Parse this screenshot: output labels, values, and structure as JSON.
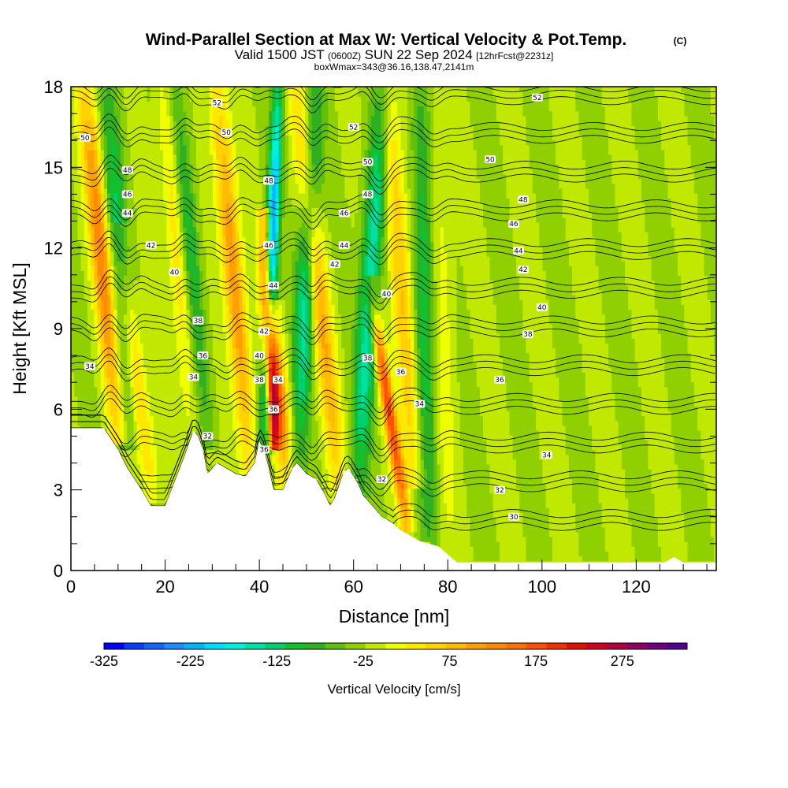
{
  "title": {
    "main": "Wind-Parallel Section at Max W: Vertical Velocity & Pot.Temp.",
    "copyright": "(C)",
    "valid_prefix": "Valid 1500 JST",
    "valid_utc": "(0600Z)",
    "valid_date": "SUN 22 Sep 2024",
    "forecast": "[12hrFcst@2231z]",
    "box_info": "boxWmax=343@36.16,138.47,2141m"
  },
  "colors": {
    "terrain": "#ffffff",
    "contour": "#000000",
    "palette": [
      "#0000ff",
      "#0a3cff",
      "#1464ff",
      "#1e8cff",
      "#00b4ff",
      "#00dcff",
      "#00f0e0",
      "#00e0a0",
      "#00d070",
      "#10c030",
      "#30b020",
      "#60c010",
      "#90d000",
      "#c0e800",
      "#f0ff00",
      "#ffe800",
      "#ffd200",
      "#ffbc00",
      "#ffa000",
      "#ff8a00",
      "#ff7000",
      "#ff5000",
      "#f03000",
      "#e01000",
      "#d00020",
      "#b00040",
      "#900060",
      "#700080",
      "#500090"
    ]
  },
  "chart_data": {
    "type": "heatmap",
    "title": "Wind-Parallel Section at Max W: Vertical Velocity & Pot.Temp.",
    "xlabel": "Distance [nm]",
    "ylabel": "Height [Kft MSL]",
    "xlim": [
      0,
      137
    ],
    "ylim": [
      0,
      18
    ],
    "x_ticks": [
      0,
      20,
      40,
      60,
      80,
      100,
      120
    ],
    "y_ticks": [
      0,
      3,
      6,
      9,
      12,
      15,
      18
    ],
    "colorbar": {
      "label": "Vertical Velocity [cm/s]",
      "min": -325,
      "max": 325,
      "step": 25,
      "tick_values": [
        -325,
        -225,
        -125,
        -25,
        75,
        175,
        275
      ]
    },
    "terrain_profile": {
      "x": [
        0,
        7,
        10,
        12,
        15,
        17,
        20,
        22,
        24,
        26,
        27,
        28,
        29,
        31,
        33,
        35,
        37,
        39,
        40,
        41,
        42,
        43,
        45,
        46,
        47,
        48,
        50,
        52,
        54,
        55,
        56,
        57,
        58,
        59,
        61,
        62,
        64,
        66,
        68,
        70,
        72,
        74,
        76,
        78,
        80,
        82,
        90,
        100,
        110,
        120,
        126,
        128,
        130,
        132,
        137
      ],
      "height_kft": [
        5.3,
        5.3,
        4.5,
        3.8,
        3.0,
        2.4,
        2.4,
        3.3,
        4.2,
        5.2,
        5.0,
        4.5,
        3.6,
        4.0,
        3.8,
        3.6,
        3.5,
        4.0,
        4.8,
        4.5,
        3.8,
        3.0,
        3.0,
        3.4,
        3.8,
        4.0,
        3.6,
        3.4,
        2.8,
        2.4,
        2.7,
        3.2,
        3.7,
        3.8,
        3.2,
        2.8,
        2.4,
        2.0,
        1.8,
        1.5,
        1.3,
        1.1,
        1.0,
        0.9,
        0.6,
        0.3,
        0.3,
        0.3,
        0.3,
        0.3,
        0.3,
        0.5,
        0.3,
        0.3,
        0.3
      ]
    },
    "updraft_bands": [
      {
        "x_bottom": 10,
        "x_top": 3,
        "h_bottom": 5.2,
        "h_top": 18,
        "w": 170
      },
      {
        "x_bottom": 17,
        "x_top": 10,
        "h_bottom": 3.0,
        "h_top": 12,
        "w": 100
      },
      {
        "x_bottom": 27,
        "x_top": 20,
        "h_bottom": 4.5,
        "h_top": 18,
        "w": 120
      },
      {
        "x_bottom": 38,
        "x_top": 31,
        "h_bottom": 4.0,
        "h_top": 18,
        "w": 150
      },
      {
        "x_bottom": 43,
        "x_top": 41,
        "h_bottom": 5.0,
        "h_top": 12.5,
        "w": 300
      },
      {
        "x_bottom": 46,
        "x_top": 43,
        "h_bottom": 3.5,
        "h_top": 9,
        "w": 150
      },
      {
        "x_bottom": 57,
        "x_top": 48,
        "h_bottom": 3.0,
        "h_top": 18,
        "w": 130
      },
      {
        "x_bottom": 71,
        "x_top": 64,
        "h_bottom": 2.0,
        "h_top": 10,
        "w": 220
      },
      {
        "x_bottom": 73,
        "x_top": 67,
        "h_bottom": 3.5,
        "h_top": 18,
        "w": 110
      },
      {
        "x_bottom": 80,
        "x_top": 78,
        "h_bottom": 0.8,
        "h_top": 18,
        "w": 40
      }
    ],
    "downdraft_bands": [
      {
        "x_bottom": 12,
        "x_top": 8,
        "h_bottom": 5.0,
        "h_top": 18,
        "w": -110
      },
      {
        "x_bottom": 28,
        "x_top": 22,
        "h_bottom": 5.0,
        "h_top": 18,
        "w": -130
      },
      {
        "x_bottom": 41,
        "x_top": 44,
        "h_bottom": 4.8,
        "h_top": 18,
        "w": -250
      },
      {
        "x_bottom": 48,
        "x_top": 52,
        "h_bottom": 4.0,
        "h_top": 18,
        "w": -140
      },
      {
        "x_bottom": 61,
        "x_top": 66,
        "h_bottom": 3.2,
        "h_top": 18,
        "w": -150
      },
      {
        "x_bottom": 76,
        "x_top": 74,
        "h_bottom": 1.0,
        "h_top": 18,
        "w": -100
      }
    ],
    "contour_levels_k": [
      30,
      32,
      34,
      36,
      38,
      40,
      42,
      44,
      46,
      48,
      50,
      52
    ],
    "contour_labels": [
      {
        "x": 3,
        "h": 16.1,
        "text": "50"
      },
      {
        "x": 12,
        "h": 14.9,
        "text": "48"
      },
      {
        "x": 12,
        "h": 14.0,
        "text": "46"
      },
      {
        "x": 12,
        "h": 13.3,
        "text": "44"
      },
      {
        "x": 17,
        "h": 12.1,
        "text": "42"
      },
      {
        "x": 22,
        "h": 11.1,
        "text": "40"
      },
      {
        "x": 4,
        "h": 7.6,
        "text": "34"
      },
      {
        "x": 31,
        "h": 17.4,
        "text": "52"
      },
      {
        "x": 33,
        "h": 16.3,
        "text": "50"
      },
      {
        "x": 27,
        "h": 9.3,
        "text": "38"
      },
      {
        "x": 28,
        "h": 8.0,
        "text": "36"
      },
      {
        "x": 26,
        "h": 7.2,
        "text": "34"
      },
      {
        "x": 29,
        "h": 5.0,
        "text": "32"
      },
      {
        "x": 42,
        "h": 14.5,
        "text": "48"
      },
      {
        "x": 42,
        "h": 12.1,
        "text": "46"
      },
      {
        "x": 43,
        "h": 10.6,
        "text": "44"
      },
      {
        "x": 41,
        "h": 8.9,
        "text": "42"
      },
      {
        "x": 40,
        "h": 8.0,
        "text": "40"
      },
      {
        "x": 40,
        "h": 7.1,
        "text": "38"
      },
      {
        "x": 44,
        "h": 7.1,
        "text": "34"
      },
      {
        "x": 43,
        "h": 6.0,
        "text": "36"
      },
      {
        "x": 41,
        "h": 4.5,
        "text": "36"
      },
      {
        "x": 60,
        "h": 16.5,
        "text": "52"
      },
      {
        "x": 63,
        "h": 15.2,
        "text": "50"
      },
      {
        "x": 63,
        "h": 14.0,
        "text": "48"
      },
      {
        "x": 58,
        "h": 13.3,
        "text": "46"
      },
      {
        "x": 58,
        "h": 12.1,
        "text": "44"
      },
      {
        "x": 56,
        "h": 11.4,
        "text": "42"
      },
      {
        "x": 67,
        "h": 10.3,
        "text": "40"
      },
      {
        "x": 63,
        "h": 7.9,
        "text": "38"
      },
      {
        "x": 70,
        "h": 7.4,
        "text": "36"
      },
      {
        "x": 74,
        "h": 6.2,
        "text": "34"
      },
      {
        "x": 66,
        "h": 3.4,
        "text": "32"
      },
      {
        "x": 99,
        "h": 17.6,
        "text": "52"
      },
      {
        "x": 89,
        "h": 15.3,
        "text": "50"
      },
      {
        "x": 96,
        "h": 13.8,
        "text": "48"
      },
      {
        "x": 94,
        "h": 12.9,
        "text": "46"
      },
      {
        "x": 95,
        "h": 11.9,
        "text": "44"
      },
      {
        "x": 96,
        "h": 11.2,
        "text": "42"
      },
      {
        "x": 100,
        "h": 9.8,
        "text": "40"
      },
      {
        "x": 97,
        "h": 8.8,
        "text": "38"
      },
      {
        "x": 91,
        "h": 7.1,
        "text": "36"
      },
      {
        "x": 101,
        "h": 4.3,
        "text": "34"
      },
      {
        "x": 91,
        "h": 3.0,
        "text": "32"
      },
      {
        "x": 94,
        "h": 2.0,
        "text": "30"
      }
    ]
  }
}
